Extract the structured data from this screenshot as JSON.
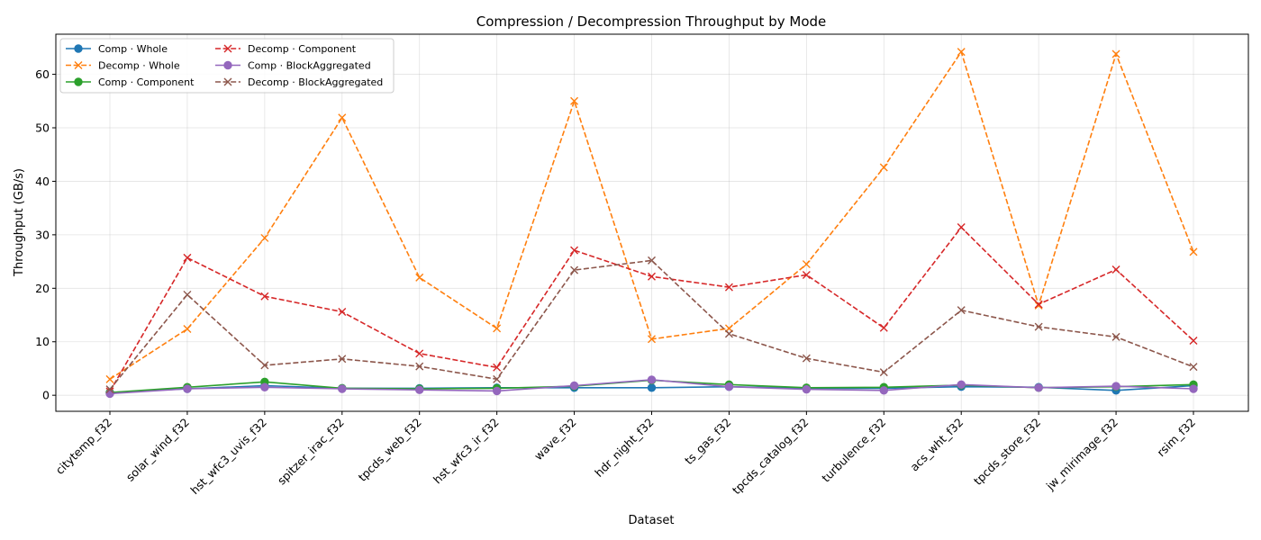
{
  "chart_data": {
    "type": "line",
    "title": "Compression / Decompression Throughput by Mode",
    "xlabel": "Dataset",
    "ylabel": "Throughput (GB/s)",
    "ylim": [
      -3,
      67.5
    ],
    "yticks": [
      0,
      10,
      20,
      30,
      40,
      50,
      60
    ],
    "grid": true,
    "legend_position": "top-left",
    "categories": [
      "citytemp_f32",
      "solar_wind_f32",
      "hst_wfc3_uvis_f32",
      "spitzer_irac_f32",
      "tpcds_web_f32",
      "hst_wfc3_ir_f32",
      "wave_f32",
      "hdr_night_f32",
      "ts_gas_f32",
      "tpcds_catalog_f32",
      "turbulence_f32",
      "acs_wht_f32",
      "tpcds_store_f32",
      "jw_mirimage_f32",
      "rsim_f32"
    ],
    "series": [
      {
        "name": "Comp · Whole",
        "color": "#1f77b4",
        "dash": "solid",
        "marker": "o",
        "values": [
          0.5,
          1.2,
          1.8,
          1.3,
          1.3,
          1.4,
          1.4,
          1.4,
          1.6,
          1.3,
          1.3,
          1.6,
          1.5,
          0.9,
          1.8
        ]
      },
      {
        "name": "Decomp · Whole",
        "color": "#ff7f0e",
        "dash": "dashed",
        "marker": "x",
        "values": [
          3.0,
          12.4,
          29.4,
          51.9,
          22.0,
          12.5,
          55.0,
          10.5,
          12.5,
          24.5,
          42.6,
          64.2,
          16.8,
          63.8,
          26.8
        ]
      },
      {
        "name": "Comp · Component",
        "color": "#2ca02c",
        "dash": "solid",
        "marker": "o",
        "values": [
          0.5,
          1.5,
          2.5,
          1.3,
          1.2,
          1.3,
          1.7,
          2.8,
          2.0,
          1.4,
          1.5,
          1.9,
          1.4,
          1.6,
          2.0
        ]
      },
      {
        "name": "Decomp · Component",
        "color": "#d62728",
        "dash": "dashed",
        "marker": "x",
        "values": [
          0.7,
          25.7,
          18.5,
          15.6,
          7.8,
          5.2,
          27.1,
          22.2,
          20.2,
          22.5,
          12.6,
          31.4,
          17.0,
          23.5,
          10.2
        ]
      },
      {
        "name": "Comp · BlockAggregated",
        "color": "#9467bd",
        "dash": "solid",
        "marker": "o",
        "values": [
          0.3,
          1.2,
          1.5,
          1.2,
          1.0,
          0.8,
          1.8,
          2.9,
          1.6,
          1.1,
          0.9,
          2.0,
          1.4,
          1.7,
          1.2
        ]
      },
      {
        "name": "Decomp · BlockAggregated",
        "color": "#8c564b",
        "dash": "dashed",
        "marker": "x",
        "values": [
          1.1,
          18.8,
          5.6,
          6.8,
          5.4,
          3.0,
          23.4,
          25.2,
          11.5,
          6.9,
          4.3,
          15.9,
          12.8,
          10.9,
          5.3
        ]
      }
    ]
  }
}
